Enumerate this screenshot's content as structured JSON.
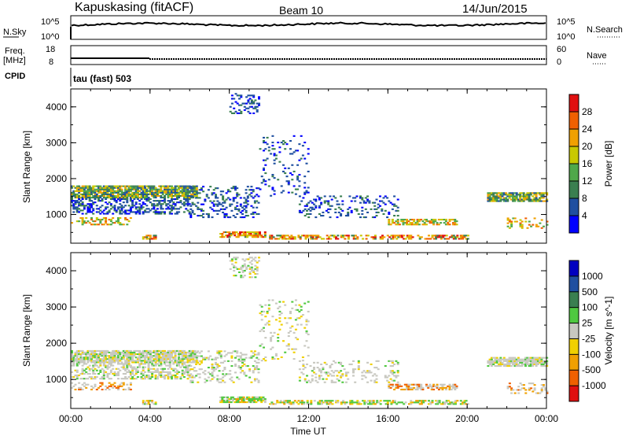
{
  "header": {
    "station": "Kapuskasing (fitACF)",
    "beam": "Beam 10",
    "date": "14/Jun/2015"
  },
  "noise_panel": {
    "left_label": "N.Sky",
    "right_label": "N.Search",
    "left_ticks": [
      "10^5",
      "10^0"
    ],
    "right_ticks": [
      "10^5",
      "10^0"
    ]
  },
  "freq_panel": {
    "left_label_1": "Freq.",
    "left_label_2": "[MHz]",
    "right_label": "Nave",
    "left_ticks": [
      "18",
      "8"
    ],
    "right_ticks": [
      "60",
      "0"
    ]
  },
  "cpid": {
    "label": "CPID",
    "value": "tau (fast) 503"
  },
  "colors": {
    "power": [
      "#0000ff",
      "#1f4fa0",
      "#3a7f50",
      "#4fa84a",
      "#c8c800",
      "#f0a000",
      "#f06000",
      "#e01010"
    ],
    "velocity": [
      "#e01010",
      "#f06000",
      "#f0a000",
      "#f0d000",
      "#c8c8c0",
      "#4fc840",
      "#3a7f50",
      "#1f4fa0",
      "#0000c0"
    ]
  },
  "chart_data": [
    {
      "type": "heatmap",
      "title": "",
      "xlabel": "Time UT",
      "ylabel": "Slant Range [km]",
      "x_ticks": [
        "00:00",
        "04:00",
        "08:00",
        "12:00",
        "16:00",
        "20:00",
        "00:00"
      ],
      "y_ticks": [
        "1000",
        "2000",
        "3000",
        "4000"
      ],
      "ylim": [
        200,
        4500
      ],
      "colorbar": {
        "label": "Power [dB]",
        "ticks": [
          "4",
          "8",
          "12",
          "16",
          "20",
          "24",
          "28"
        ]
      }
    },
    {
      "type": "heatmap",
      "title": "",
      "xlabel": "Time UT",
      "ylabel": "Slant Range [km]",
      "x_ticks": [
        "00:00",
        "04:00",
        "08:00",
        "12:00",
        "16:00",
        "20:00",
        "00:00"
      ],
      "y_ticks": [
        "1000",
        "2000",
        "3000",
        "4000"
      ],
      "ylim": [
        200,
        4500
      ],
      "colorbar": {
        "label": "Velocity [m s^-1]",
        "ticks": [
          "1000",
          "500",
          "100",
          "25",
          "-25",
          "-100",
          "-500",
          "-1000"
        ]
      }
    }
  ]
}
